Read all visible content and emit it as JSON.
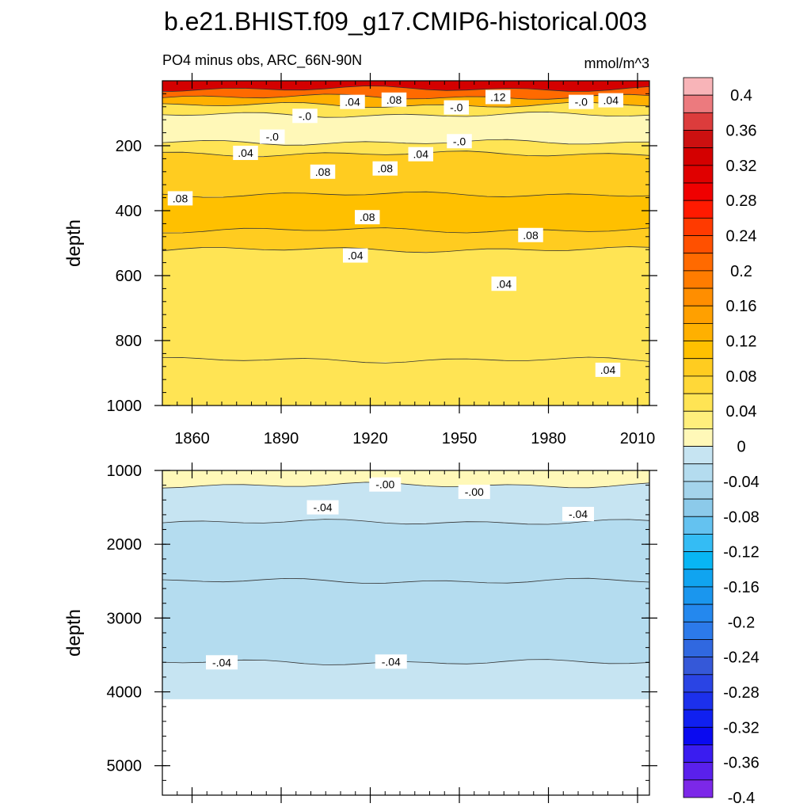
{
  "chart_data": {
    "type": "heatmap",
    "title": "b.e21.BHIST.f09_g17.CMIP6-historical.003",
    "subtitle": "PO4 minus obs, ARC_66N-90N",
    "units": "mmol/m^3",
    "xlabel": "",
    "x_range": [
      1850,
      2014
    ],
    "x_ticks": [
      1860,
      1890,
      1920,
      1950,
      1980,
      2010
    ],
    "x_tick_labels": [
      "1860",
      "1890",
      "1920",
      "1950",
      "1980",
      "2010"
    ],
    "panels": [
      {
        "name": "upper",
        "ylabel": "depth",
        "y_range": [
          0,
          1000
        ],
        "y_ticks": [
          200,
          400,
          600,
          800,
          1000
        ],
        "y_tick_labels": [
          "200",
          "400",
          "600",
          "800",
          "1000"
        ],
        "bands": [
          {
            "from": 0,
            "to": 25,
            "value": 0.3
          },
          {
            "from": 25,
            "to": 50,
            "value": 0.18
          },
          {
            "from": 50,
            "to": 75,
            "value": 0.1
          },
          {
            "from": 75,
            "to": 105,
            "value": 0.03
          },
          {
            "from": 105,
            "to": 190,
            "value": -0.02
          },
          {
            "from": 190,
            "to": 225,
            "value": 0.03
          },
          {
            "from": 225,
            "to": 350,
            "value": 0.07
          },
          {
            "from": 350,
            "to": 460,
            "value": 0.09
          },
          {
            "from": 460,
            "to": 520,
            "value": 0.06
          },
          {
            "from": 520,
            "to": 860,
            "value": 0.03
          },
          {
            "from": 860,
            "to": 1000,
            "value": 0.02
          }
        ],
        "contour_labels": [
          {
            "text": ".04",
            "x": 1914,
            "y": 65
          },
          {
            "text": ".08",
            "x": 1928,
            "y": 58
          },
          {
            "text": ".12",
            "x": 1963,
            "y": 50
          },
          {
            "text": ".04",
            "x": 2001,
            "y": 60
          },
          {
            "text": "-.0",
            "x": 1898,
            "y": 108
          },
          {
            "text": "-.0",
            "x": 1949,
            "y": 82
          },
          {
            "text": "-.0",
            "x": 1991,
            "y": 65
          },
          {
            "text": "-.0",
            "x": 1887,
            "y": 172
          },
          {
            "text": ".04",
            "x": 1878,
            "y": 222
          },
          {
            "text": ".08",
            "x": 1904,
            "y": 280
          },
          {
            "text": ".08",
            "x": 1925,
            "y": 270
          },
          {
            "text": ".04",
            "x": 1937,
            "y": 226
          },
          {
            "text": "-.0",
            "x": 1950,
            "y": 186
          },
          {
            "text": ".08",
            "x": 1856,
            "y": 362
          },
          {
            "text": ".08",
            "x": 1919,
            "y": 420
          },
          {
            "text": ".08",
            "x": 1974,
            "y": 475
          },
          {
            "text": ".04",
            "x": 1915,
            "y": 538
          },
          {
            "text": ".04",
            "x": 1965,
            "y": 625
          },
          {
            "text": ".04",
            "x": 2000,
            "y": 890
          }
        ]
      },
      {
        "name": "lower",
        "ylabel": "depth",
        "y_range": [
          1000,
          5400
        ],
        "y_ticks": [
          1000,
          2000,
          3000,
          4000,
          5000
        ],
        "y_tick_labels": [
          "1000",
          "2000",
          "3000",
          "4000",
          "5000"
        ],
        "data_bottom": 4100,
        "bands": [
          {
            "from": 1000,
            "to": 1200,
            "value": -0.01
          },
          {
            "from": 1200,
            "to": 1700,
            "value": -0.04
          },
          {
            "from": 1700,
            "to": 2500,
            "value": -0.06
          },
          {
            "from": 2500,
            "to": 3600,
            "value": -0.05
          },
          {
            "from": 3600,
            "to": 4100,
            "value": -0.03
          }
        ],
        "contour_labels": [
          {
            "text": "-.00",
            "x": 1925,
            "y": 1190
          },
          {
            "text": "-.00",
            "x": 1955,
            "y": 1290
          },
          {
            "text": "-.04",
            "x": 1904,
            "y": 1500
          },
          {
            "text": "-.04",
            "x": 1990,
            "y": 1590
          },
          {
            "text": "-.04",
            "x": 1870,
            "y": 3600
          },
          {
            "text": "-.04",
            "x": 1927,
            "y": 3590
          }
        ]
      }
    ],
    "colorbar": {
      "levels": [
        -0.4,
        -0.38,
        -0.36,
        -0.34,
        -0.32,
        -0.3,
        -0.28,
        -0.26,
        -0.24,
        -0.22,
        -0.2,
        -0.18,
        -0.16,
        -0.14,
        -0.12,
        -0.1,
        -0.08,
        -0.06,
        -0.04,
        -0.02,
        0,
        0.02,
        0.04,
        0.06,
        0.08,
        0.1,
        0.12,
        0.14,
        0.16,
        0.18,
        0.2,
        0.22,
        0.24,
        0.26,
        0.28,
        0.3,
        0.32,
        0.34,
        0.36,
        0.38,
        0.4
      ],
      "tick_labels": [
        "0.4",
        "0.36",
        "0.32",
        "0.28",
        "0.24",
        "0.2",
        "0.16",
        "0.12",
        "0.08",
        "0.04",
        "0",
        "-0.04",
        "-0.08",
        "-0.12",
        "-0.16",
        "-0.2",
        "-0.24",
        "-0.28",
        "-0.32",
        "-0.36",
        "-0.4"
      ],
      "tick_values": [
        0.4,
        0.36,
        0.32,
        0.28,
        0.24,
        0.2,
        0.16,
        0.12,
        0.08,
        0.04,
        0,
        -0.04,
        -0.08,
        -0.12,
        -0.16,
        -0.2,
        -0.24,
        -0.28,
        -0.32,
        -0.36,
        -0.4
      ],
      "colors_top_to_bottom": [
        "#f8b4b8",
        "#ec7a7e",
        "#dc3c3c",
        "#cc1010",
        "#d40000",
        "#e00000",
        "#f00000",
        "#ff1a00",
        "#ff3a00",
        "#ff5000",
        "#ff6a00",
        "#ff7c00",
        "#ff8e00",
        "#ffa000",
        "#ffb000",
        "#ffc000",
        "#ffcc20",
        "#ffd838",
        "#ffe454",
        "#ffef7c",
        "#fff8b8",
        "#c6e4f2",
        "#b4dcef",
        "#a4d4ec",
        "#8ccaea",
        "#64c2f0",
        "#34bcf4",
        "#08b6f4",
        "#10a4f0",
        "#1a96ee",
        "#2488ee",
        "#2c7aea",
        "#3068e0",
        "#3558d8",
        "#2a44e4",
        "#1c30ec",
        "#1020f0",
        "#0a0af0",
        "#3a1cf0",
        "#5a20ec",
        "#7c28e8"
      ]
    }
  }
}
